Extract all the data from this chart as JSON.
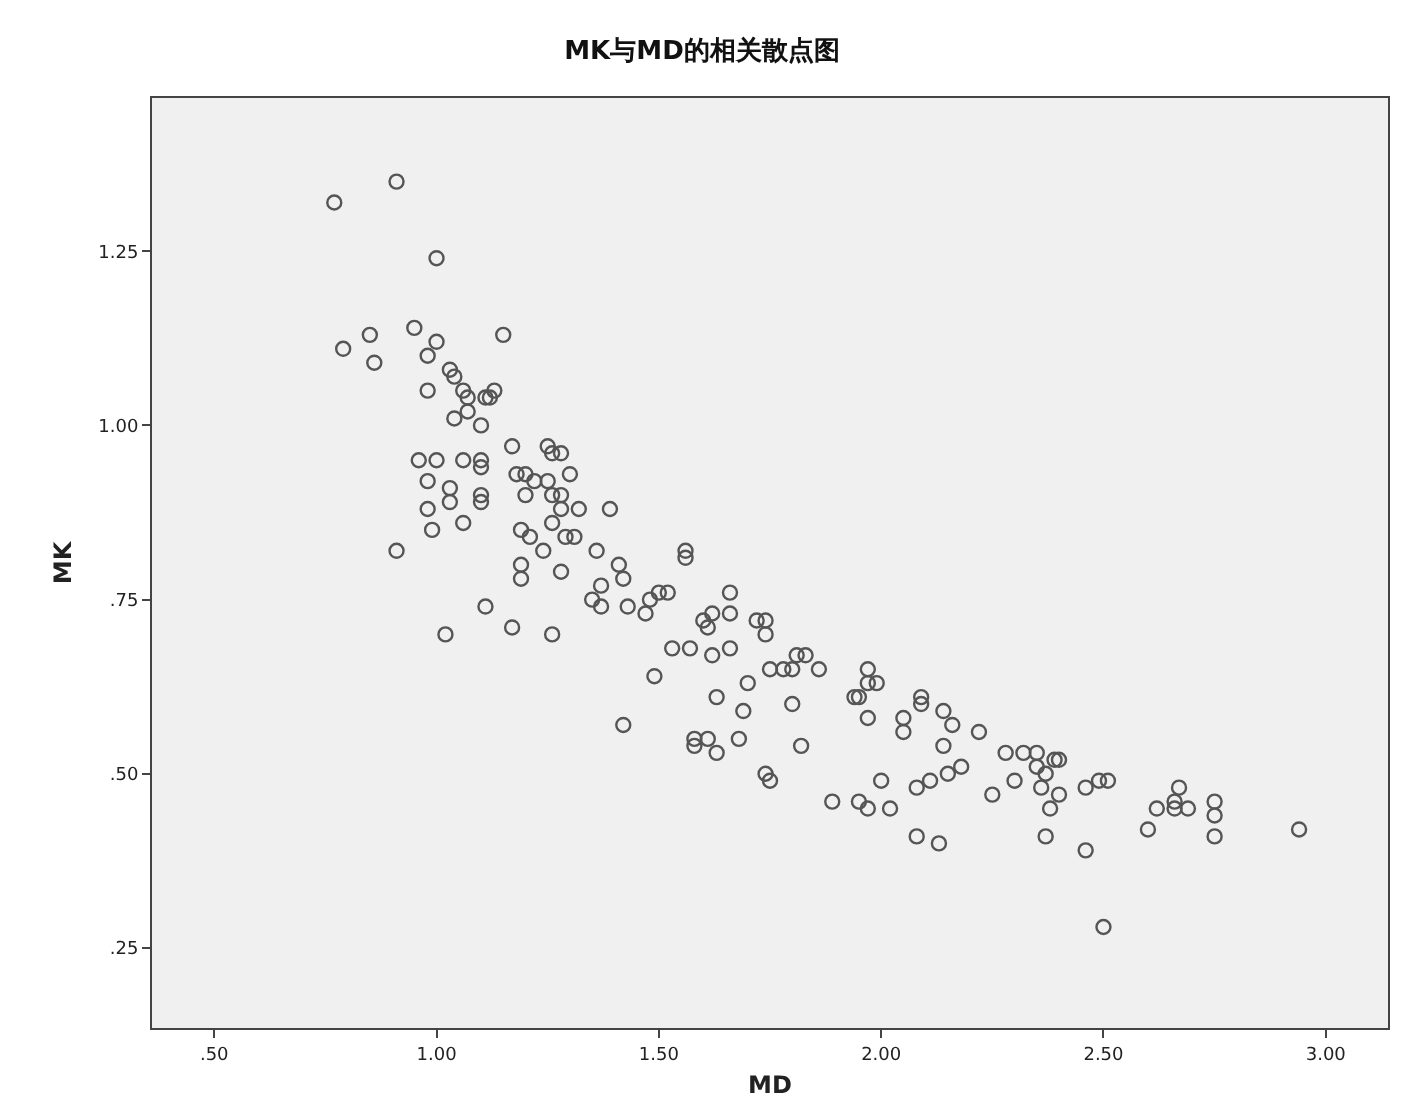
{
  "chart_data": {
    "type": "scatter",
    "title": "MK与MD的相关散点图",
    "xlabel": "MD",
    "ylabel": "MK",
    "marker": "circle",
    "grid": false,
    "xlim": [
      0.36,
      3.14
    ],
    "ylim": [
      0.135,
      1.47
    ],
    "xticks": [
      {
        "value": 0.5,
        "label": ".50"
      },
      {
        "value": 1.0,
        "label": "1.00"
      },
      {
        "value": 1.5,
        "label": "1.50"
      },
      {
        "value": 2.0,
        "label": "2.00"
      },
      {
        "value": 2.5,
        "label": "2.50"
      },
      {
        "value": 3.0,
        "label": "3.00"
      }
    ],
    "yticks": [
      {
        "value": 0.25,
        "label": ".25"
      },
      {
        "value": 0.5,
        "label": ".50"
      },
      {
        "value": 0.75,
        "label": ".75"
      },
      {
        "value": 1.0,
        "label": "1.00"
      },
      {
        "value": 1.25,
        "label": "1.25"
      }
    ],
    "series": [
      {
        "color": "#555555",
        "x": [
          0.77,
          0.91,
          1.0,
          0.79,
          0.85,
          0.86,
          0.95,
          1.0,
          0.98,
          1.15,
          0.98,
          1.03,
          1.04,
          1.06,
          1.07,
          1.11,
          1.12,
          1.13,
          1.04,
          1.07,
          1.1,
          0.96,
          1.0,
          1.06,
          1.1,
          1.1,
          0.98,
          1.03,
          1.03,
          1.1,
          1.1,
          0.98,
          0.99,
          1.06,
          0.91,
          1.02,
          1.11,
          1.17,
          1.18,
          1.2,
          1.25,
          1.26,
          1.28,
          1.22,
          1.25,
          1.3,
          1.2,
          1.26,
          1.28,
          1.28,
          1.32,
          1.26,
          1.39,
          1.19,
          1.21,
          1.29,
          1.31,
          1.24,
          1.19,
          1.19,
          1.28,
          1.36,
          1.41,
          1.42,
          1.37,
          1.35,
          1.37,
          1.43,
          1.17,
          1.26,
          1.47,
          1.48,
          1.5,
          1.52,
          1.56,
          1.56,
          1.49,
          1.53,
          1.57,
          1.42,
          1.6,
          1.61,
          1.62,
          1.62,
          1.66,
          1.66,
          1.66,
          1.63,
          1.7,
          1.69,
          1.58,
          1.58,
          1.61,
          1.63,
          1.68,
          1.72,
          1.74,
          1.74,
          1.75,
          1.78,
          1.81,
          1.83,
          1.8,
          1.86,
          1.8,
          1.82,
          1.74,
          1.75,
          1.89,
          1.95,
          1.97,
          2.02,
          2.0,
          1.94,
          1.97,
          1.97,
          1.99,
          1.95,
          1.97,
          2.05,
          2.05,
          2.09,
          2.09,
          2.14,
          2.16,
          2.22,
          2.14,
          2.08,
          2.11,
          2.15,
          2.18,
          2.08,
          2.13,
          2.25,
          2.28,
          2.3,
          2.32,
          2.35,
          2.35,
          2.36,
          2.37,
          2.39,
          2.4,
          2.38,
          2.4,
          2.37,
          2.46,
          2.49,
          2.51,
          2.46,
          2.5,
          2.6,
          2.62,
          2.66,
          2.67,
          2.66,
          2.69,
          2.75,
          2.75,
          2.75,
          2.94
        ],
        "values": [
          1.32,
          1.35,
          1.24,
          1.11,
          1.13,
          1.09,
          1.14,
          1.12,
          1.1,
          1.13,
          1.05,
          1.08,
          1.07,
          1.05,
          1.04,
          1.04,
          1.04,
          1.05,
          1.01,
          1.02,
          1.0,
          0.95,
          0.95,
          0.95,
          0.95,
          0.94,
          0.92,
          0.91,
          0.89,
          0.9,
          0.89,
          0.88,
          0.85,
          0.86,
          0.82,
          0.7,
          0.74,
          0.97,
          0.93,
          0.93,
          0.97,
          0.96,
          0.96,
          0.92,
          0.92,
          0.93,
          0.9,
          0.9,
          0.9,
          0.88,
          0.88,
          0.86,
          0.88,
          0.85,
          0.84,
          0.84,
          0.84,
          0.82,
          0.8,
          0.78,
          0.79,
          0.82,
          0.8,
          0.78,
          0.77,
          0.75,
          0.74,
          0.74,
          0.71,
          0.7,
          0.73,
          0.75,
          0.76,
          0.76,
          0.82,
          0.81,
          0.64,
          0.68,
          0.68,
          0.57,
          0.72,
          0.71,
          0.73,
          0.67,
          0.76,
          0.73,
          0.68,
          0.61,
          0.63,
          0.59,
          0.55,
          0.54,
          0.55,
          0.53,
          0.55,
          0.72,
          0.72,
          0.7,
          0.65,
          0.65,
          0.67,
          0.67,
          0.65,
          0.65,
          0.6,
          0.54,
          0.5,
          0.49,
          0.46,
          0.46,
          0.45,
          0.45,
          0.49,
          0.61,
          0.65,
          0.63,
          0.63,
          0.61,
          0.58,
          0.58,
          0.56,
          0.61,
          0.6,
          0.59,
          0.57,
          0.56,
          0.54,
          0.48,
          0.49,
          0.5,
          0.51,
          0.41,
          0.4,
          0.47,
          0.53,
          0.49,
          0.53,
          0.53,
          0.51,
          0.48,
          0.5,
          0.52,
          0.52,
          0.45,
          0.47,
          0.41,
          0.48,
          0.49,
          0.49,
          0.39,
          0.28,
          0.42,
          0.45,
          0.46,
          0.48,
          0.45,
          0.45,
          0.46,
          0.44,
          0.41,
          0.42
        ]
      }
    ]
  }
}
